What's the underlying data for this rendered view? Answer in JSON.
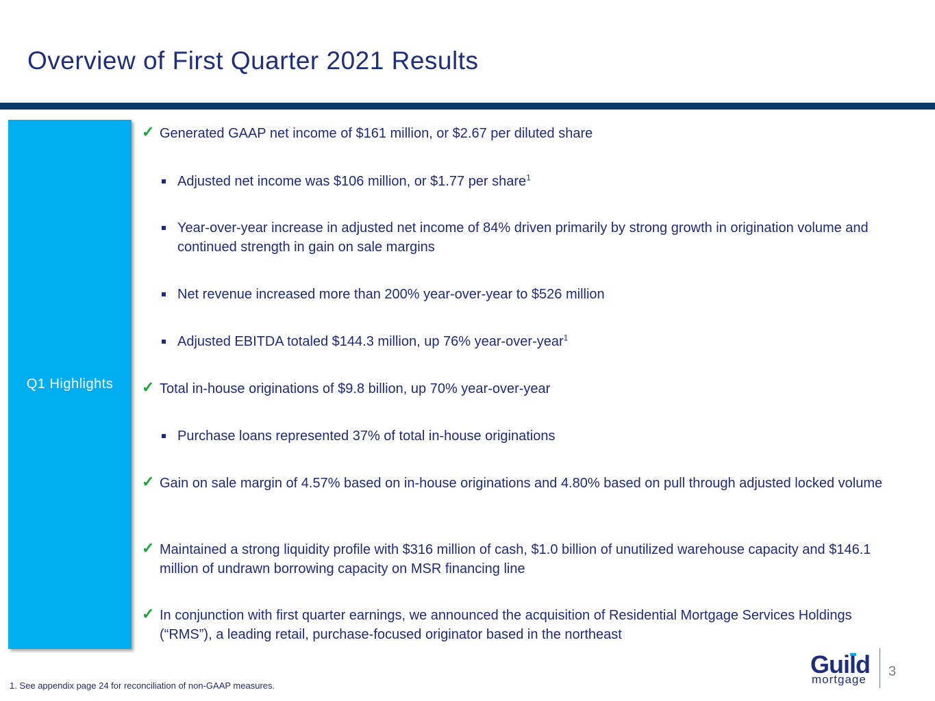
{
  "title": "Overview of First Quarter 2021 Results",
  "sidebar_label": "Q1 Highlights",
  "items": [
    {
      "type": "check",
      "text": "Generated GAAP net income of $161 million, or $2.67 per diluted share"
    },
    {
      "type": "bullet",
      "text": "Adjusted net income was $106 million, or $1.77 per share",
      "sup": "1"
    },
    {
      "type": "bullet",
      "text": "Year-over-year increase in adjusted net income of 84% driven primarily by strong growth in origination volume and continued strength in gain on sale margins"
    },
    {
      "type": "bullet",
      "text": "Net revenue increased more than 200% year-over-year to $526 million"
    },
    {
      "type": "bullet",
      "text": "Adjusted EBITDA totaled $144.3 million, up 76% year-over-year",
      "sup": "1"
    },
    {
      "type": "check",
      "text": "Total in-house originations of $9.8 billion, up 70% year-over-year"
    },
    {
      "type": "bullet",
      "text": "Purchase loans represented 37% of total in-house originations"
    },
    {
      "type": "check",
      "text": "Gain on sale margin of 4.57% based on in-house originations and 4.80% based on pull through adjusted locked volume"
    },
    {
      "type": "check",
      "text": "Maintained a strong liquidity profile with $316 million of cash, $1.0 billion of unutilized warehouse capacity and $146.1 million of undrawn borrowing capacity on MSR financing line"
    },
    {
      "type": "check",
      "text": "In conjunction with first quarter earnings, we announced the acquisition of Residential Mortgage Services Holdings (“RMS”), a leading retail, purchase-focused originator based in the northeast"
    }
  ],
  "footnote": "1. See appendix page 24 for reconciliation of non-GAAP measures.",
  "logo": {
    "name": "Guild",
    "sub": "mortgage"
  },
  "page_number": "3",
  "colors": {
    "title": "#1f2e7a",
    "rule": "#0b3a66",
    "sidebar": "#00aeef",
    "check": "#13a538",
    "text": "#1f2a7a"
  }
}
